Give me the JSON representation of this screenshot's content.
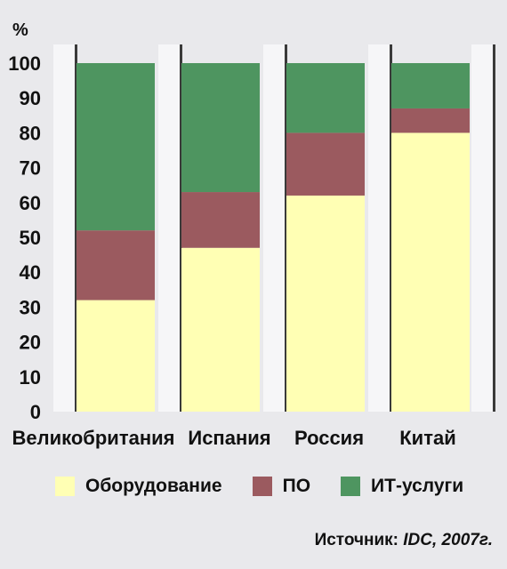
{
  "chart_data": {
    "type": "bar",
    "stacked": true,
    "unit": "%",
    "categories": [
      "Великобритания",
      "Испания",
      "Россия",
      "Китай"
    ],
    "series": [
      {
        "name": "Оборудование",
        "color": "#ffffb4",
        "values": [
          32,
          47,
          62,
          80
        ]
      },
      {
        "name": "ПО",
        "color": "#9b5a5f",
        "values": [
          20,
          16,
          18,
          7
        ]
      },
      {
        "name": "ИТ-услуги",
        "color": "#4e9560",
        "values": [
          48,
          37,
          20,
          13
        ]
      }
    ],
    "ylim": [
      0,
      100
    ],
    "yticks": [
      0,
      10,
      20,
      30,
      40,
      50,
      60,
      70,
      80,
      90,
      100
    ],
    "grid": false,
    "legend_position": "bottom"
  },
  "source": {
    "label": "Источник:",
    "name": "IDC, 2007г."
  }
}
